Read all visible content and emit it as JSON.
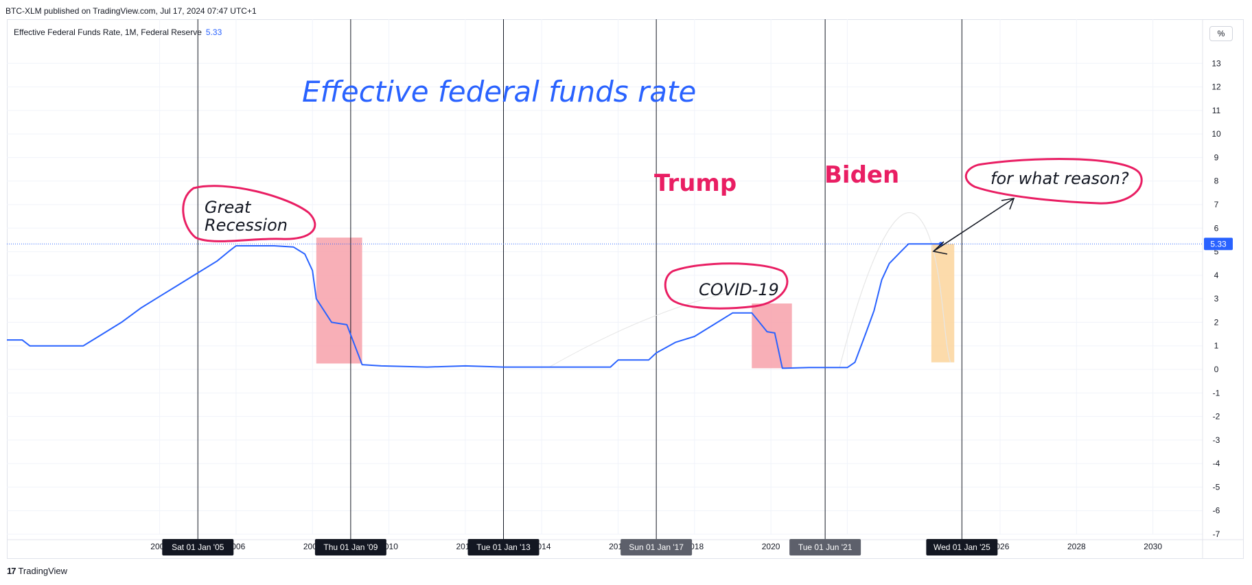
{
  "header": {
    "published": "BTC-XLM published on TradingView.com, Jul 17, 2024 07:47 UTC+1",
    "legend_label": "Effective Federal Funds Rate, 1M, Federal Reserve",
    "legend_value": "5.33",
    "scale_button": "%"
  },
  "footer": {
    "brand_logo": "17",
    "brand": "TradingView"
  },
  "colors": {
    "series": "#2962ff",
    "title": "#2962ff",
    "politics": "#e91e63",
    "recession_box": "#f7a1aa",
    "future_box": "#fcd59c",
    "ghost_line": "#e6e6e6"
  },
  "annotations": {
    "title": "Effective federal funds rate",
    "trump": "Trump",
    "biden": "Biden",
    "great_recession_1": "Great",
    "great_recession_2": "Recession",
    "covid": "COVID-19",
    "question": "for what reason?"
  },
  "chart_data": {
    "type": "line",
    "title": "Effective Federal Funds Rate, 1M, Federal Reserve",
    "xlabel": "",
    "ylabel": "%",
    "xlim": [
      2000.0,
      2031.3
    ],
    "ylim": [
      -7,
      14
    ],
    "grid": true,
    "legend": "top-left",
    "y_ticks": [
      -7,
      -6,
      -5,
      -4,
      -3,
      -2,
      -1,
      0,
      1,
      2,
      3,
      4,
      5,
      6,
      7,
      8,
      9,
      10,
      11,
      12,
      13
    ],
    "x_ticks": [
      {
        "x": 2004,
        "label": "2004"
      },
      {
        "x": 2006,
        "label": "2006"
      },
      {
        "x": 2008,
        "label": "2008"
      },
      {
        "x": 2010,
        "label": "2010"
      },
      {
        "x": 2012,
        "label": "2012"
      },
      {
        "x": 2014,
        "label": "2014"
      },
      {
        "x": 2016,
        "label": "2016"
      },
      {
        "x": 2018,
        "label": "2018"
      },
      {
        "x": 2020,
        "label": "2020"
      },
      {
        "x": 2022,
        "label": "2022"
      },
      {
        "x": 2026,
        "label": "2026"
      },
      {
        "x": 2028,
        "label": "2028"
      },
      {
        "x": 2030,
        "label": "2030"
      }
    ],
    "last_value": 5.33,
    "series": [
      {
        "name": "Effective Federal Funds Rate",
        "points": [
          [
            2000.0,
            1.25
          ],
          [
            2000.4,
            1.25
          ],
          [
            2000.6,
            1.0
          ],
          [
            2001.0,
            1.0
          ],
          [
            2001.5,
            1.0
          ],
          [
            2002.0,
            1.0
          ],
          [
            2002.5,
            1.5
          ],
          [
            2003.0,
            2.0
          ],
          [
            2003.5,
            2.6
          ],
          [
            2004.0,
            3.1
          ],
          [
            2004.5,
            3.6
          ],
          [
            2005.0,
            4.1
          ],
          [
            2005.5,
            4.6
          ],
          [
            2005.8,
            5.0
          ],
          [
            2006.0,
            5.25
          ],
          [
            2006.5,
            5.25
          ],
          [
            2007.0,
            5.25
          ],
          [
            2007.5,
            5.2
          ],
          [
            2007.8,
            4.9
          ],
          [
            2008.0,
            4.2
          ],
          [
            2008.1,
            3.0
          ],
          [
            2008.5,
            2.0
          ],
          [
            2008.9,
            1.9
          ],
          [
            2009.3,
            0.2
          ],
          [
            2009.8,
            0.15
          ],
          [
            2011.0,
            0.1
          ],
          [
            2012.0,
            0.15
          ],
          [
            2013.0,
            0.1
          ],
          [
            2014.0,
            0.1
          ],
          [
            2015.0,
            0.1
          ],
          [
            2015.8,
            0.1
          ],
          [
            2016.0,
            0.4
          ],
          [
            2016.8,
            0.4
          ],
          [
            2017.0,
            0.7
          ],
          [
            2017.5,
            1.15
          ],
          [
            2018.0,
            1.4
          ],
          [
            2018.5,
            1.9
          ],
          [
            2019.0,
            2.4
          ],
          [
            2019.5,
            2.4
          ],
          [
            2019.7,
            2.0
          ],
          [
            2019.9,
            1.6
          ],
          [
            2020.1,
            1.55
          ],
          [
            2020.3,
            0.05
          ],
          [
            2021.0,
            0.08
          ],
          [
            2022.0,
            0.08
          ],
          [
            2022.2,
            0.3
          ],
          [
            2022.5,
            1.6
          ],
          [
            2022.7,
            2.5
          ],
          [
            2022.9,
            3.8
          ],
          [
            2023.1,
            4.5
          ],
          [
            2023.4,
            5.0
          ],
          [
            2023.6,
            5.33
          ],
          [
            2024.0,
            5.33
          ],
          [
            2024.45,
            5.33
          ]
        ]
      }
    ],
    "vertical_markers": [
      {
        "x": 2005.0,
        "label": "Sat 01 Jan '05"
      },
      {
        "x": 2009.0,
        "label": "Thu 01 Jan '09"
      },
      {
        "x": 2013.0,
        "label": "Tue 01 Jan '13"
      },
      {
        "x": 2017.0,
        "label": "Sun 01 Jan '17"
      },
      {
        "x": 2021.42,
        "label": "Tue 01 Jun '21"
      },
      {
        "x": 2025.0,
        "label": "Wed 01 Jan '25"
      }
    ],
    "highlight_boxes": [
      {
        "name": "Great Recession",
        "x0": 2008.1,
        "x1": 2009.3,
        "y0": 0.25,
        "y1": 5.6
      },
      {
        "name": "COVID-19",
        "x0": 2019.5,
        "x1": 2020.55,
        "y0": 0.05,
        "y1": 2.8
      },
      {
        "name": "future",
        "x0": 2024.2,
        "x1": 2024.8,
        "y0": 0.3,
        "y1": 5.33
      }
    ]
  }
}
